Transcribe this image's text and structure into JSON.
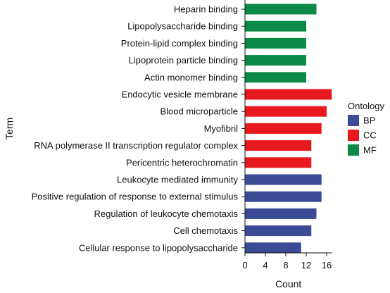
{
  "chart_data": {
    "type": "bar",
    "orientation": "horizontal",
    "xlabel": "Count",
    "ylabel": "Term",
    "xlim": [
      0,
      17
    ],
    "x_ticks": [
      0,
      4,
      8,
      12,
      16
    ],
    "grid": false,
    "legend": {
      "title": "Ontology",
      "placement": "right",
      "entries": [
        {
          "name": "BP",
          "color": "#3C4B95"
        },
        {
          "name": "CC",
          "color": "#E8191E"
        },
        {
          "name": "MF",
          "color": "#0B8A47"
        }
      ]
    },
    "categories": [
      "Heparin binding",
      "Lipopolysaccharide binding",
      "Protein-lipid complex binding",
      "Lipoprotein particle binding",
      "Actin monomer binding",
      "Endocytic vesicle membrane",
      "Blood microparticle",
      "Myofibril",
      "RNA polymerase II transcription regulator complex",
      "Pericentric heterochromatin",
      "Leukocyte mediated immunity",
      "Positive regulation of response to external stimulus",
      "Regulation of leukocyte chemotaxis",
      "Cell chemotaxis",
      "Cellular response to lipopolysaccharide"
    ],
    "values": [
      14,
      12,
      12,
      12,
      12,
      17,
      16,
      15,
      13,
      13,
      15,
      15,
      14,
      13,
      11
    ],
    "groups": [
      "MF",
      "MF",
      "MF",
      "MF",
      "MF",
      "CC",
      "CC",
      "CC",
      "CC",
      "CC",
      "BP",
      "BP",
      "BP",
      "BP",
      "BP"
    ]
  }
}
